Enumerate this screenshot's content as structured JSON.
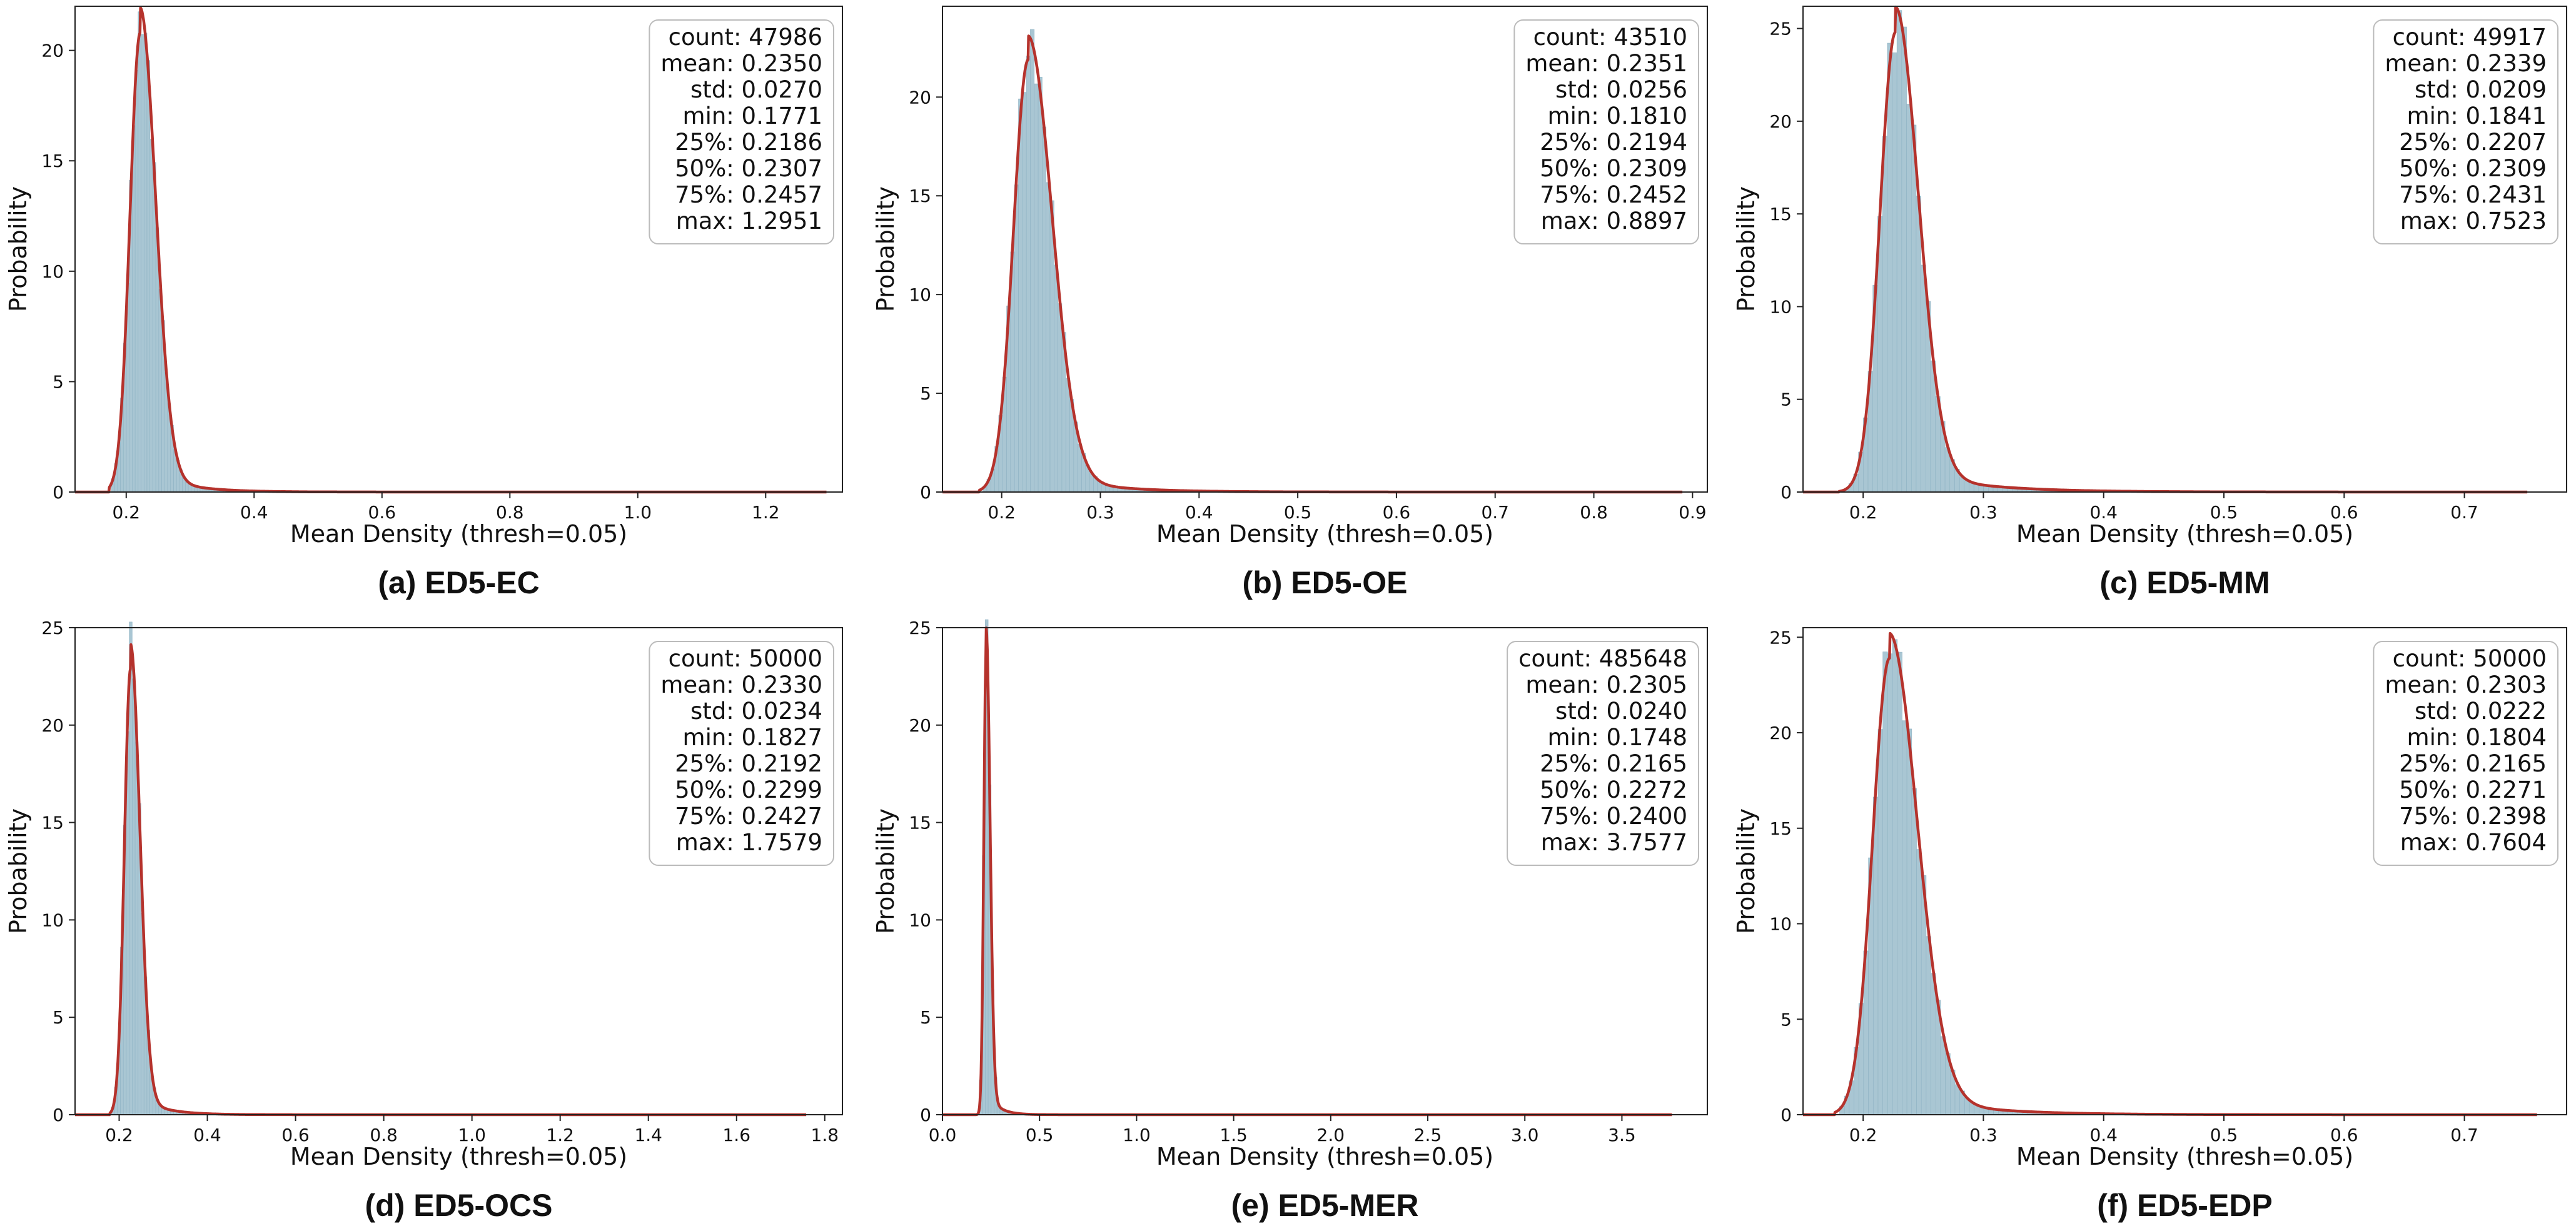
{
  "colors": {
    "bar_fill": "#a9c6d3",
    "bar_stroke": "#8fb3c4",
    "kde_line": "#b5322c",
    "axis": "#222222"
  },
  "chart_data": [
    {
      "type": "histogram",
      "panel": "a",
      "caption": "(a) ED5-EC",
      "xlabel": "Mean Density (thresh=0.05)",
      "ylabel": "Probability",
      "xlim": [
        0.12,
        1.32
      ],
      "ylim": [
        0,
        22.0
      ],
      "xticks": [
        0.2,
        0.4,
        0.6,
        0.8,
        1.0,
        1.2
      ],
      "xtick_labels": [
        "0.2",
        "0.4",
        "0.6",
        "0.8",
        "1.0",
        "1.2"
      ],
      "yticks": [
        0,
        5,
        10,
        15,
        20
      ],
      "ytick_labels": [
        "0",
        "5",
        "10",
        "15",
        "20"
      ],
      "peak": 20.8,
      "peak_x": 0.222,
      "sigma_left": 0.016,
      "sigma_right": 0.024,
      "data_min": 0.1771,
      "data_max": 1.2951,
      "legend_position": "top-right",
      "stats": [
        "count: 47986",
        "mean: 0.2350",
        "std: 0.0270",
        "min: 0.1771",
        "25%: 0.2186",
        "50%: 0.2307",
        "75%: 0.2457",
        "max: 1.2951"
      ]
    },
    {
      "type": "histogram",
      "panel": "b",
      "caption": "(b) ED5-OE",
      "xlabel": "Mean Density (thresh=0.05)",
      "ylabel": "Probability",
      "xlim": [
        0.14,
        0.915
      ],
      "ylim": [
        0,
        24.6
      ],
      "xticks": [
        0.2,
        0.3,
        0.4,
        0.5,
        0.6,
        0.7,
        0.8,
        0.9
      ],
      "xtick_labels": [
        "0.2",
        "0.3",
        "0.4",
        "0.5",
        "0.6",
        "0.7",
        "0.8",
        "0.9"
      ],
      "yticks": [
        0,
        5,
        10,
        15,
        20
      ],
      "ytick_labels": [
        "0",
        "5",
        "10",
        "15",
        "20"
      ],
      "peak": 21.9,
      "peak_x": 0.227,
      "sigma_left": 0.015,
      "sigma_right": 0.024,
      "data_min": 0.181,
      "data_max": 0.8897,
      "legend_position": "top-right",
      "stats": [
        "count: 43510",
        "mean: 0.2351",
        "std: 0.0256",
        "min: 0.1810",
        "25%: 0.2194",
        "50%: 0.2309",
        "75%: 0.2452",
        "max: 0.8897"
      ]
    },
    {
      "type": "histogram",
      "panel": "c",
      "caption": "(c) ED5-MM",
      "xlabel": "Mean Density (thresh=0.05)",
      "ylabel": "Probability",
      "xlim": [
        0.15,
        0.785
      ],
      "ylim": [
        0,
        26.2
      ],
      "xticks": [
        0.2,
        0.3,
        0.4,
        0.5,
        0.6,
        0.7
      ],
      "xtick_labels": [
        "0.2",
        "0.3",
        "0.4",
        "0.5",
        "0.6",
        "0.7"
      ],
      "yticks": [
        0,
        5,
        10,
        15,
        20,
        25
      ],
      "ytick_labels": [
        "0",
        "5",
        "10",
        "15",
        "20",
        "25"
      ],
      "peak": 24.8,
      "peak_x": 0.227,
      "sigma_left": 0.013,
      "sigma_right": 0.019,
      "data_min": 0.1841,
      "data_max": 0.7523,
      "legend_position": "top-right",
      "stats": [
        "count: 49917",
        "mean: 0.2339",
        "std: 0.0209",
        "min: 0.1841",
        "25%: 0.2207",
        "50%: 0.2309",
        "75%: 0.2431",
        "max: 0.7523"
      ]
    },
    {
      "type": "histogram",
      "panel": "d",
      "caption": "(d) ED5-OCS",
      "xlabel": "Mean Density (thresh=0.05)",
      "ylabel": "Probability",
      "xlim": [
        0.1,
        1.84
      ],
      "ylim": [
        0,
        25.0
      ],
      "xticks": [
        0.2,
        0.4,
        0.6,
        0.8,
        1.0,
        1.2,
        1.4,
        1.6,
        1.8
      ],
      "xtick_labels": [
        "0.2",
        "0.4",
        "0.6",
        "0.8",
        "1.0",
        "1.2",
        "1.4",
        "1.6",
        "1.8"
      ],
      "yticks": [
        0,
        5,
        10,
        15,
        20,
        25
      ],
      "ytick_labels": [
        "0",
        "5",
        "10",
        "15",
        "20",
        "25"
      ],
      "peak": 22.9,
      "peak_x": 0.226,
      "sigma_left": 0.014,
      "sigma_right": 0.021,
      "data_min": 0.1827,
      "data_max": 1.7579,
      "legend_position": "top-right",
      "stats": [
        "count: 50000",
        "mean: 0.2330",
        "std: 0.0234",
        "min: 0.1827",
        "25%: 0.2192",
        "50%: 0.2299",
        "75%: 0.2427",
        "max: 1.7579"
      ]
    },
    {
      "type": "histogram",
      "panel": "e",
      "caption": "(e) ED5-MER",
      "xlabel": "Mean Density (thresh=0.05)",
      "ylabel": "Probability",
      "xlim": [
        0.0,
        3.94
      ],
      "ylim": [
        0,
        25.0
      ],
      "xticks": [
        0.0,
        0.5,
        1.0,
        1.5,
        2.0,
        2.5,
        3.0,
        3.5
      ],
      "xtick_labels": [
        "0.0",
        "0.5",
        "1.0",
        "1.5",
        "2.0",
        "2.5",
        "3.0",
        "3.5"
      ],
      "yticks": [
        0,
        5,
        10,
        15,
        20,
        25
      ],
      "ytick_labels": [
        "0",
        "5",
        "10",
        "15",
        "20",
        "25"
      ],
      "peak": 23.7,
      "peak_x": 0.225,
      "sigma_left": 0.012,
      "sigma_right": 0.02,
      "data_min": 0.1748,
      "data_max": 3.7577,
      "legend_position": "top-right",
      "stats": [
        "count: 485648",
        "mean: 0.2305",
        "std: 0.0240",
        "min: 0.1748",
        "25%: 0.2165",
        "50%: 0.2272",
        "75%: 0.2400",
        "max: 3.7577"
      ]
    },
    {
      "type": "histogram",
      "panel": "f",
      "caption": "(f) ED5-EDP",
      "xlabel": "Mean Density (thresh=0.05)",
      "ylabel": "Probability",
      "xlim": [
        0.15,
        0.785
      ],
      "ylim": [
        0,
        25.5
      ],
      "xticks": [
        0.2,
        0.3,
        0.4,
        0.5,
        0.6,
        0.7
      ],
      "xtick_labels": [
        "0.2",
        "0.3",
        "0.4",
        "0.5",
        "0.6",
        "0.7"
      ],
      "yticks": [
        0,
        5,
        10,
        15,
        20,
        25
      ],
      "ytick_labels": [
        "0",
        "5",
        "10",
        "15",
        "20",
        "25"
      ],
      "peak": 23.9,
      "peak_x": 0.222,
      "sigma_left": 0.014,
      "sigma_right": 0.023,
      "data_min": 0.1804,
      "data_max": 0.7604,
      "legend_position": "top-right",
      "stats": [
        "count: 50000",
        "mean: 0.2303",
        "std: 0.0222",
        "min: 0.1804",
        "25%: 0.2165",
        "50%: 0.2271",
        "75%: 0.2398",
        "max: 0.7604"
      ]
    }
  ]
}
